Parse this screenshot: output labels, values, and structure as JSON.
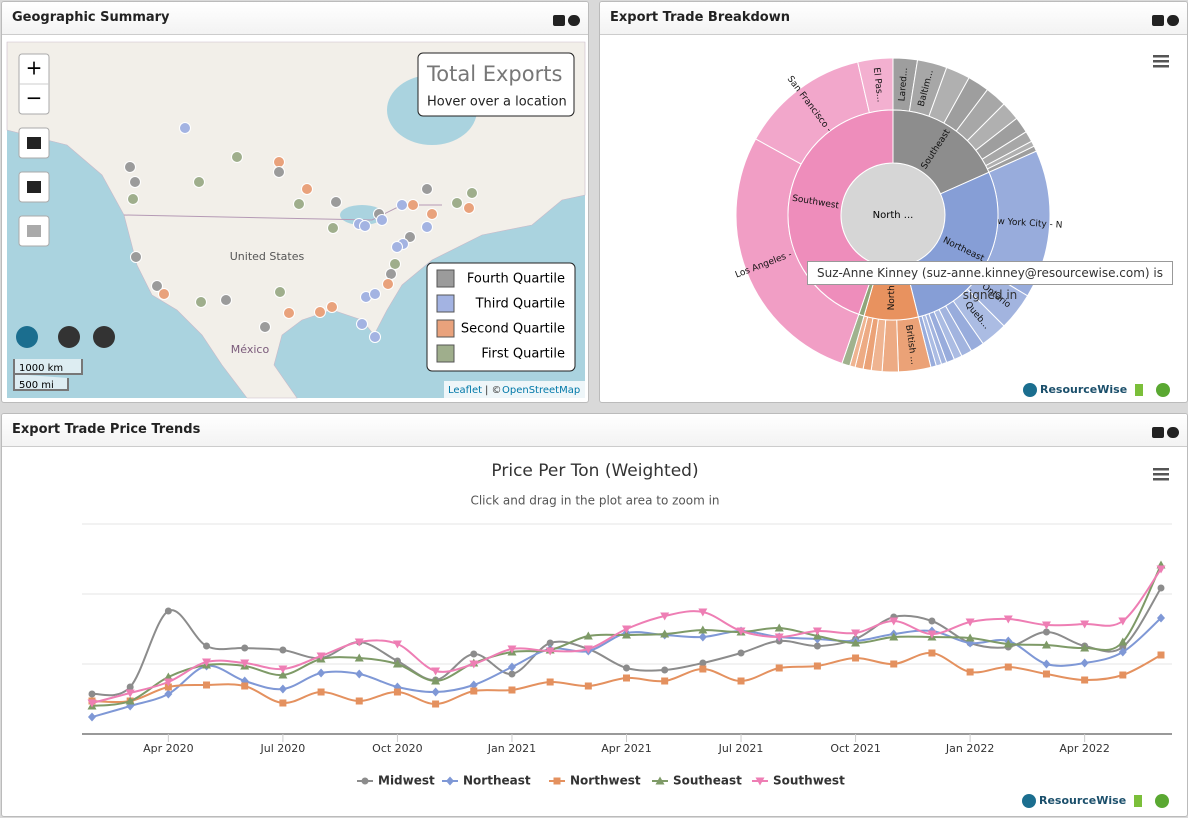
{
  "panels": {
    "geo": {
      "title": "Geographic Summary"
    },
    "breakdown": {
      "title": "Export Trade Breakdown"
    },
    "trends": {
      "title": "Export Trade Price Trends"
    }
  },
  "map": {
    "zoom_in": "+",
    "zoom_out": "−",
    "info_title": "Total Exports",
    "info_text": "Hover over a location",
    "country_us": "United States",
    "country_mx": "México",
    "scale_km": "1000 km",
    "scale_mi": "500 mi",
    "attribution_leaflet": "Leaflet",
    "attribution_sep": "| ©",
    "attribution_osm": "OpenStreetMap",
    "legend": [
      {
        "name": "Fourth Quartile",
        "color": "#9b9b9b"
      },
      {
        "name": "Third Quartile",
        "color": "#a3b3e2"
      },
      {
        "name": "Second Quartile",
        "color": "#e9a27c"
      },
      {
        "name": "First Quartile",
        "color": "#9fae8c"
      }
    ]
  },
  "tooltip": "Suz-Anne Kinney (suz-anne.kinney@resourcewise.com) is signed in",
  "brand": "ResourceWise",
  "sunburst": {
    "type": "sunburst",
    "center_label": "North ...",
    "groups": [
      {
        "name": "Southeast",
        "color": "#8d8d8d",
        "children": [
          {
            "name": "Lared...",
            "value": 9
          },
          {
            "name": "Baltim...",
            "value": 11
          },
          {
            "name": null,
            "value": 9
          },
          {
            "name": null,
            "value": 8
          },
          {
            "name": null,
            "value": 8
          },
          {
            "name": null,
            "value": 7
          },
          {
            "name": null,
            "value": 6
          },
          {
            "name": null,
            "value": 4
          },
          {
            "name": null,
            "value": 2
          },
          {
            "name": null,
            "value": 2
          }
        ]
      },
      {
        "name": "Northeast",
        "color": "#869ed6",
        "children": [
          {
            "name": "New York City - N",
            "value": 55
          },
          {
            "name": "Ontario",
            "value": 14
          },
          {
            "name": "Queb...",
            "value": 10
          },
          {
            "name": null,
            "value": 5
          },
          {
            "name": null,
            "value": 4
          },
          {
            "name": null,
            "value": 3
          },
          {
            "name": null,
            "value": 3
          },
          {
            "name": null,
            "value": 2
          },
          {
            "name": null,
            "value": 2
          },
          {
            "name": null,
            "value": 2
          }
        ]
      },
      {
        "name": "North...",
        "color": "#e8925f",
        "children": [
          {
            "name": "British ...",
            "value": 12
          },
          {
            "name": null,
            "value": 6
          },
          {
            "name": null,
            "value": 4
          },
          {
            "name": null,
            "value": 3
          },
          {
            "name": null,
            "value": 3
          },
          {
            "name": null,
            "value": 2
          }
        ]
      },
      {
        "name": null,
        "color": "#8fa57a",
        "children": [
          {
            "name": null,
            "value": 3
          }
        ]
      },
      {
        "name": "Southwest",
        "color": "#ee8dbb",
        "children": [
          {
            "name": "Los Angeles - CA",
            "value": 100
          },
          {
            "name": "San Francisco - CA",
            "value": 48
          },
          {
            "name": "El Pas...",
            "value": 13
          }
        ]
      }
    ]
  },
  "chart_data": {
    "type": "line",
    "title": "Price Per Ton (Weighted)",
    "subtitle": "Click and drag in the plot area to zoom in",
    "x": [
      "2020-02",
      "2020-03",
      "2020-04",
      "2020-05",
      "2020-06",
      "2020-07",
      "2020-08",
      "2020-09",
      "2020-10",
      "2020-11",
      "2020-12",
      "2021-01",
      "2021-02",
      "2021-03",
      "2021-04",
      "2021-05",
      "2021-06",
      "2021-07",
      "2021-08",
      "2021-09",
      "2021-10",
      "2021-11",
      "2021-12",
      "2022-01",
      "2022-02",
      "2022-03",
      "2022-04",
      "2022-05",
      "2022-06"
    ],
    "xlim": [
      "2020-02",
      "2022-06"
    ],
    "xticks": [
      {
        "value": "2020-04",
        "label": "Apr 2020"
      },
      {
        "value": "2020-07",
        "label": "Jul 2020"
      },
      {
        "value": "2020-10",
        "label": "Oct 2020"
      },
      {
        "value": "2021-01",
        "label": "Jan 2021"
      },
      {
        "value": "2021-04",
        "label": "Apr 2021"
      },
      {
        "value": "2021-07",
        "label": "Jul 2021"
      },
      {
        "value": "2021-10",
        "label": "Oct 2021"
      },
      {
        "value": "2022-01",
        "label": "Jan 2022"
      },
      {
        "value": "2022-04",
        "label": "Apr 2022"
      }
    ],
    "ylim": [
      0,
      210
    ],
    "gridlines": [
      70,
      140,
      210
    ],
    "series": [
      {
        "name": "Midwest",
        "color": "#8c8c8c",
        "marker": "circle",
        "values": [
          40,
          47,
          123,
          88,
          86,
          84,
          76,
          92,
          73,
          54,
          80,
          60,
          91,
          85,
          66,
          64,
          71,
          81,
          93,
          88,
          95,
          117,
          113,
          91,
          87,
          102,
          88,
          87,
          146
        ]
      },
      {
        "name": "Northeast",
        "color": "#7f98d6",
        "marker": "diamond",
        "values": [
          17,
          28,
          40,
          68,
          53,
          45,
          61,
          60,
          47,
          42,
          49,
          67,
          85,
          83,
          101,
          99,
          97,
          103,
          97,
          95,
          93,
          100,
          103,
          91,
          93,
          70,
          71,
          82,
          116
        ]
      },
      {
        "name": "Northwest",
        "color": "#e4915f",
        "marker": "square",
        "values": [
          33,
          33,
          47,
          49,
          48,
          31,
          42,
          33,
          42,
          30,
          43,
          44,
          52,
          48,
          56,
          53,
          65,
          53,
          66,
          68,
          76,
          70,
          81,
          62,
          67,
          60,
          54,
          59,
          79
        ]
      },
      {
        "name": "Southeast",
        "color": "#7e9a67",
        "marker": "triangle",
        "values": [
          28,
          33,
          57,
          69,
          68,
          59,
          75,
          76,
          70,
          53,
          71,
          82,
          84,
          98,
          99,
          100,
          104,
          102,
          106,
          98,
          91,
          97,
          97,
          96,
          90,
          89,
          86,
          92,
          169
        ]
      },
      {
        "name": "Southwest",
        "color": "#ee7eb4",
        "marker": "triangle-down",
        "values": [
          31,
          41,
          52,
          72,
          71,
          65,
          78,
          92,
          90,
          63,
          70,
          85,
          83,
          85,
          105,
          118,
          122,
          103,
          97,
          103,
          101,
          113,
          100,
          112,
          115,
          109,
          110,
          113,
          165
        ]
      }
    ]
  }
}
